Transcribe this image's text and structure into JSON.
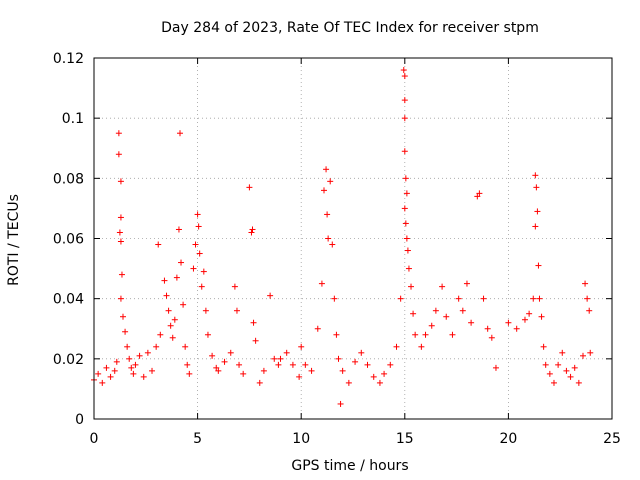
{
  "chart_data": {
    "type": "scatter",
    "title": "Day 284 of 2023, Rate Of TEC Index for receiver stpm",
    "xlabel": "GPS time / hours",
    "ylabel": "ROTI / TECUs",
    "xlim": [
      0,
      25
    ],
    "ylim": [
      0,
      0.12
    ],
    "xticks": [
      0,
      5,
      10,
      15,
      20,
      25
    ],
    "xtick_labels": [
      "0",
      "5",
      "10",
      "15",
      "20",
      "25"
    ],
    "yticks": [
      0,
      0.02,
      0.04,
      0.06,
      0.08,
      0.1,
      0.12
    ],
    "ytick_labels": [
      "0",
      "0.02",
      "0.04",
      "0.06",
      "0.08",
      "0.1",
      "0.12"
    ],
    "grid": true,
    "marker": "+",
    "color": "#ff0000",
    "series": [
      {
        "name": "ROTI",
        "points": [
          [
            0.0,
            0.013
          ],
          [
            0.2,
            0.015
          ],
          [
            0.4,
            0.012
          ],
          [
            0.6,
            0.017
          ],
          [
            0.8,
            0.014
          ],
          [
            1.0,
            0.016
          ],
          [
            1.1,
            0.019
          ],
          [
            1.2,
            0.095
          ],
          [
            1.2,
            0.088
          ],
          [
            1.3,
            0.079
          ],
          [
            1.3,
            0.067
          ],
          [
            1.25,
            0.062
          ],
          [
            1.3,
            0.059
          ],
          [
            1.35,
            0.048
          ],
          [
            1.3,
            0.04
          ],
          [
            1.4,
            0.034
          ],
          [
            1.5,
            0.029
          ],
          [
            1.6,
            0.024
          ],
          [
            1.7,
            0.02
          ],
          [
            1.8,
            0.017
          ],
          [
            1.9,
            0.015
          ],
          [
            2.0,
            0.018
          ],
          [
            2.2,
            0.021
          ],
          [
            2.4,
            0.014
          ],
          [
            2.6,
            0.022
          ],
          [
            2.8,
            0.016
          ],
          [
            3.0,
            0.024
          ],
          [
            3.1,
            0.058
          ],
          [
            3.2,
            0.028
          ],
          [
            3.4,
            0.046
          ],
          [
            3.5,
            0.041
          ],
          [
            3.6,
            0.036
          ],
          [
            3.7,
            0.031
          ],
          [
            3.8,
            0.027
          ],
          [
            3.9,
            0.033
          ],
          [
            4.0,
            0.047
          ],
          [
            4.1,
            0.063
          ],
          [
            4.15,
            0.095
          ],
          [
            4.2,
            0.052
          ],
          [
            4.3,
            0.038
          ],
          [
            4.4,
            0.024
          ],
          [
            4.5,
            0.018
          ],
          [
            4.6,
            0.015
          ],
          [
            4.8,
            0.05
          ],
          [
            4.9,
            0.058
          ],
          [
            5.0,
            0.068
          ],
          [
            5.05,
            0.064
          ],
          [
            5.1,
            0.055
          ],
          [
            5.2,
            0.044
          ],
          [
            5.3,
            0.049
          ],
          [
            5.4,
            0.036
          ],
          [
            5.5,
            0.028
          ],
          [
            5.7,
            0.021
          ],
          [
            5.9,
            0.017
          ],
          [
            6.0,
            0.016
          ],
          [
            6.3,
            0.019
          ],
          [
            6.6,
            0.022
          ],
          [
            6.8,
            0.044
          ],
          [
            6.9,
            0.036
          ],
          [
            7.0,
            0.018
          ],
          [
            7.2,
            0.015
          ],
          [
            7.5,
            0.077
          ],
          [
            7.6,
            0.062
          ],
          [
            7.65,
            0.063
          ],
          [
            7.7,
            0.032
          ],
          [
            7.8,
            0.026
          ],
          [
            8.0,
            0.012
          ],
          [
            8.2,
            0.016
          ],
          [
            8.5,
            0.041
          ],
          [
            8.7,
            0.02
          ],
          [
            8.9,
            0.018
          ],
          [
            9.0,
            0.02
          ],
          [
            9.3,
            0.022
          ],
          [
            9.6,
            0.018
          ],
          [
            9.9,
            0.014
          ],
          [
            10.0,
            0.024
          ],
          [
            10.2,
            0.018
          ],
          [
            10.5,
            0.016
          ],
          [
            10.8,
            0.03
          ],
          [
            11.0,
            0.045
          ],
          [
            11.1,
            0.076
          ],
          [
            11.2,
            0.083
          ],
          [
            11.25,
            0.068
          ],
          [
            11.3,
            0.06
          ],
          [
            11.4,
            0.079
          ],
          [
            11.5,
            0.058
          ],
          [
            11.6,
            0.04
          ],
          [
            11.7,
            0.028
          ],
          [
            11.8,
            0.02
          ],
          [
            11.9,
            0.005
          ],
          [
            12.0,
            0.016
          ],
          [
            12.3,
            0.012
          ],
          [
            12.6,
            0.019
          ],
          [
            12.9,
            0.022
          ],
          [
            13.2,
            0.018
          ],
          [
            13.5,
            0.014
          ],
          [
            13.8,
            0.012
          ],
          [
            14.0,
            0.015
          ],
          [
            14.3,
            0.018
          ],
          [
            14.6,
            0.024
          ],
          [
            14.8,
            0.04
          ],
          [
            14.95,
            0.116
          ],
          [
            15.0,
            0.114
          ],
          [
            15.0,
            0.106
          ],
          [
            15.0,
            0.1
          ],
          [
            15.0,
            0.089
          ],
          [
            15.05,
            0.08
          ],
          [
            15.1,
            0.075
          ],
          [
            15.0,
            0.07
          ],
          [
            15.05,
            0.065
          ],
          [
            15.1,
            0.06
          ],
          [
            15.15,
            0.056
          ],
          [
            15.2,
            0.05
          ],
          [
            15.3,
            0.044
          ],
          [
            15.4,
            0.035
          ],
          [
            15.5,
            0.028
          ],
          [
            15.8,
            0.024
          ],
          [
            16.0,
            0.028
          ],
          [
            16.3,
            0.031
          ],
          [
            16.5,
            0.036
          ],
          [
            16.8,
            0.044
          ],
          [
            17.0,
            0.034
          ],
          [
            17.3,
            0.028
          ],
          [
            17.6,
            0.04
          ],
          [
            17.8,
            0.036
          ],
          [
            18.0,
            0.045
          ],
          [
            18.2,
            0.032
          ],
          [
            18.5,
            0.074
          ],
          [
            18.6,
            0.075
          ],
          [
            18.8,
            0.04
          ],
          [
            19.0,
            0.03
          ],
          [
            19.2,
            0.027
          ],
          [
            19.4,
            0.017
          ],
          [
            20.0,
            0.032
          ],
          [
            20.4,
            0.03
          ],
          [
            20.8,
            0.033
          ],
          [
            21.0,
            0.035
          ],
          [
            21.2,
            0.04
          ],
          [
            21.3,
            0.081
          ],
          [
            21.35,
            0.077
          ],
          [
            21.4,
            0.069
          ],
          [
            21.3,
            0.064
          ],
          [
            21.45,
            0.051
          ],
          [
            21.5,
            0.04
          ],
          [
            21.6,
            0.034
          ],
          [
            21.7,
            0.024
          ],
          [
            21.8,
            0.018
          ],
          [
            22.0,
            0.015
          ],
          [
            22.2,
            0.012
          ],
          [
            22.4,
            0.018
          ],
          [
            22.6,
            0.022
          ],
          [
            22.8,
            0.016
          ],
          [
            23.0,
            0.014
          ],
          [
            23.2,
            0.017
          ],
          [
            23.4,
            0.012
          ],
          [
            23.6,
            0.021
          ],
          [
            23.7,
            0.045
          ],
          [
            23.8,
            0.04
          ],
          [
            23.9,
            0.036
          ],
          [
            23.95,
            0.022
          ]
        ]
      }
    ]
  }
}
